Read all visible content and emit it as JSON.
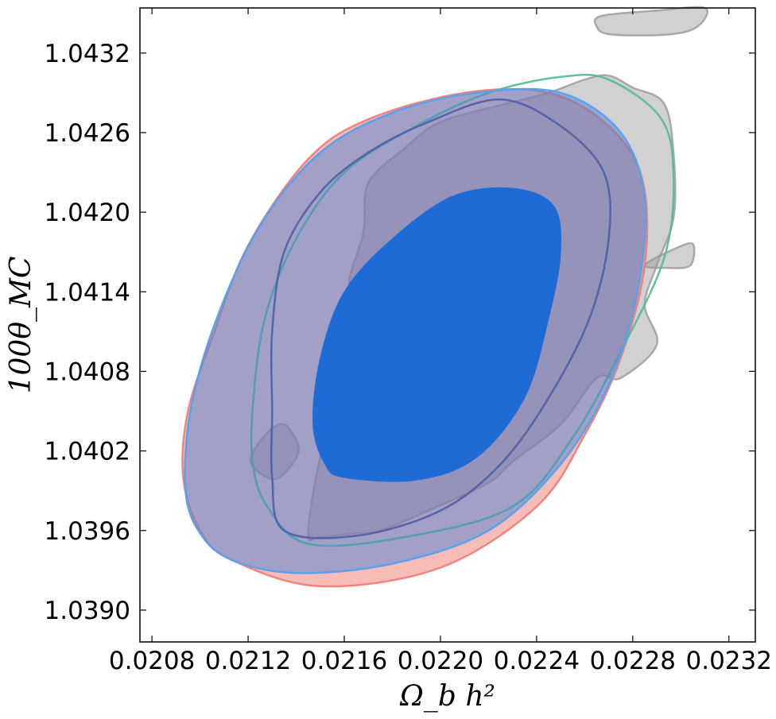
{
  "chart_data": {
    "type": "contour",
    "xlabel": "Ω_b h²",
    "ylabel": "100θ_MC",
    "xlim": [
      0.02075,
      0.02331
    ],
    "ylim": [
      1.03876,
      1.04354
    ],
    "x_ticks": [
      0.0208,
      0.0212,
      0.0216,
      0.022,
      0.0224,
      0.0228,
      0.0232
    ],
    "x_tick_labels": [
      "0.0208",
      "0.0212",
      "0.0216",
      "0.0220",
      "0.0224",
      "0.0228",
      "0.0232"
    ],
    "y_ticks": [
      1.039,
      1.0396,
      1.0402,
      1.0408,
      1.0414,
      1.042,
      1.0426,
      1.0432
    ],
    "y_tick_labels": [
      "1.0390",
      "1.0396",
      "1.0402",
      "1.0408",
      "1.0414",
      "1.0420",
      "1.0426",
      "1.0432"
    ],
    "grid": false,
    "legend": "none",
    "series": [
      {
        "color": "#999999",
        "style": "filled-contour",
        "regions": [
          [
            [
              0.02267,
              1.04348
            ],
            [
              0.0229,
              1.04352
            ],
            [
              0.0231,
              1.04354
            ],
            [
              0.02307,
              1.0434
            ],
            [
              0.02295,
              1.04334
            ],
            [
              0.02271,
              1.04334
            ],
            [
              0.02265,
              1.0434
            ]
          ],
          [
            [
              0.02145,
              1.03958
            ],
            [
              0.0215,
              1.04015
            ],
            [
              0.0216,
              1.04075
            ],
            [
              0.02167,
              1.0411
            ],
            [
              0.02162,
              1.04145
            ],
            [
              0.02168,
              1.04185
            ],
            [
              0.0217,
              1.04222
            ],
            [
              0.02185,
              1.04248
            ],
            [
              0.022,
              1.04268
            ],
            [
              0.0223,
              1.04283
            ],
            [
              0.02245,
              1.0429
            ],
            [
              0.0226,
              1.043
            ],
            [
              0.0227,
              1.04303
            ],
            [
              0.0228,
              1.04294
            ],
            [
              0.02293,
              1.04282
            ],
            [
              0.02297,
              1.04244
            ],
            [
              0.02297,
              1.04196
            ],
            [
              0.0229,
              1.0416
            ],
            [
              0.02285,
              1.0413
            ],
            [
              0.0229,
              1.041
            ],
            [
              0.02275,
              1.04075
            ],
            [
              0.02265,
              1.04075
            ],
            [
              0.0225,
              1.0404
            ],
            [
              0.0223,
              1.04012
            ],
            [
              0.0222,
              1.03996
            ],
            [
              0.02195,
              1.03975
            ],
            [
              0.02175,
              1.0396
            ],
            [
              0.02165,
              1.03958
            ],
            [
              0.0215,
              1.03955
            ]
          ],
          [
            [
              0.02285,
              1.0416
            ],
            [
              0.02297,
              1.04172
            ],
            [
              0.02305,
              1.04176
            ],
            [
              0.02304,
              1.0416
            ],
            [
              0.02295,
              1.04158
            ]
          ],
          [
            [
              0.02121,
              1.04013
            ],
            [
              0.02127,
              1.04032
            ],
            [
              0.02135,
              1.0404
            ],
            [
              0.02141,
              1.0402
            ],
            [
              0.02133,
              1.04
            ],
            [
              0.02126,
              1.04002
            ]
          ]
        ]
      },
      {
        "color": "#ee7b72",
        "style": "outline-2sigma",
        "outline": [
          [
            0.02113,
            1.03938
          ],
          [
            0.0215,
            1.03918
          ],
          [
            0.022,
            1.03932
          ],
          [
            0.0224,
            1.03978
          ],
          [
            0.0226,
            1.04032
          ],
          [
            0.02275,
            1.0409
          ],
          [
            0.02285,
            1.0416
          ],
          [
            0.02284,
            1.04225
          ],
          [
            0.0227,
            1.04265
          ],
          [
            0.02245,
            1.0429
          ],
          [
            0.0221,
            1.0429
          ],
          [
            0.0217,
            1.0427
          ],
          [
            0.02145,
            1.0424
          ],
          [
            0.0212,
            1.04175
          ],
          [
            0.02105,
            1.04105
          ],
          [
            0.02095,
            1.0405
          ],
          [
            0.02093,
            1.04
          ],
          [
            0.021,
            1.0396
          ]
        ]
      },
      {
        "color": "#52b995",
        "style": "outline-2sigma",
        "outline": [
          [
            0.02128,
            1.03978
          ],
          [
            0.02145,
            1.0395
          ],
          [
            0.02185,
            1.03955
          ],
          [
            0.0223,
            1.03978
          ],
          [
            0.02255,
            1.0403
          ],
          [
            0.02275,
            1.04095
          ],
          [
            0.02293,
            1.04165
          ],
          [
            0.02297,
            1.04225
          ],
          [
            0.02292,
            1.0427
          ],
          [
            0.0227,
            1.043
          ],
          [
            0.0225,
            1.04302
          ],
          [
            0.0222,
            1.0429
          ],
          [
            0.0219,
            1.04265
          ],
          [
            0.0216,
            1.0423
          ],
          [
            0.0214,
            1.0418
          ],
          [
            0.02127,
            1.0412
          ],
          [
            0.02122,
            1.04055
          ],
          [
            0.02122,
            1.0401
          ]
        ]
      },
      {
        "color": "#3b7dd8",
        "style": "filled-2sigma",
        "outline": [
          [
            0.02113,
            1.03938
          ],
          [
            0.0214,
            1.03928
          ],
          [
            0.0218,
            1.03935
          ],
          [
            0.0222,
            1.0396
          ],
          [
            0.0225,
            1.0401
          ],
          [
            0.0227,
            1.0407
          ],
          [
            0.02282,
            1.0414
          ],
          [
            0.02285,
            1.0421
          ],
          [
            0.02275,
            1.0426
          ],
          [
            0.0225,
            1.0429
          ],
          [
            0.02215,
            1.0429
          ],
          [
            0.0218,
            1.04275
          ],
          [
            0.0215,
            1.04245
          ],
          [
            0.02125,
            1.0419
          ],
          [
            0.02107,
            1.0412
          ],
          [
            0.02096,
            1.0405
          ],
          [
            0.02094,
            1.0399
          ],
          [
            0.021,
            1.03958
          ]
        ]
      },
      {
        "color": "#1e6bd6",
        "style": "filled-1sigma",
        "outline": [
          [
            0.0216,
            1.04
          ],
          [
            0.0219,
            1.03998
          ],
          [
            0.02215,
            1.04015
          ],
          [
            0.02235,
            1.0406
          ],
          [
            0.02245,
            1.0412
          ],
          [
            0.0225,
            1.0417
          ],
          [
            0.02247,
            1.04205
          ],
          [
            0.0223,
            1.04218
          ],
          [
            0.02205,
            1.04212
          ],
          [
            0.0218,
            1.0418
          ],
          [
            0.0216,
            1.0414
          ],
          [
            0.0215,
            1.0409
          ],
          [
            0.02147,
            1.0404
          ],
          [
            0.02152,
            1.0401
          ]
        ]
      },
      {
        "color": "#4c5da5",
        "style": "outline-2sigma",
        "outline": [
          [
            0.02135,
            1.0396
          ],
          [
            0.02165,
            1.03956
          ],
          [
            0.022,
            1.03975
          ],
          [
            0.02225,
            1.0401
          ],
          [
            0.02245,
            1.0406
          ],
          [
            0.02262,
            1.0412
          ],
          [
            0.0227,
            1.0418
          ],
          [
            0.02268,
            1.0423
          ],
          [
            0.0225,
            1.04265
          ],
          [
            0.02225,
            1.04285
          ],
          [
            0.02195,
            1.04268
          ],
          [
            0.0217,
            1.04245
          ],
          [
            0.0215,
            1.04215
          ],
          [
            0.02135,
            1.0417
          ],
          [
            0.0213,
            1.0411
          ],
          [
            0.0213,
            1.0405
          ],
          [
            0.0213,
            1.04
          ]
        ]
      }
    ]
  }
}
